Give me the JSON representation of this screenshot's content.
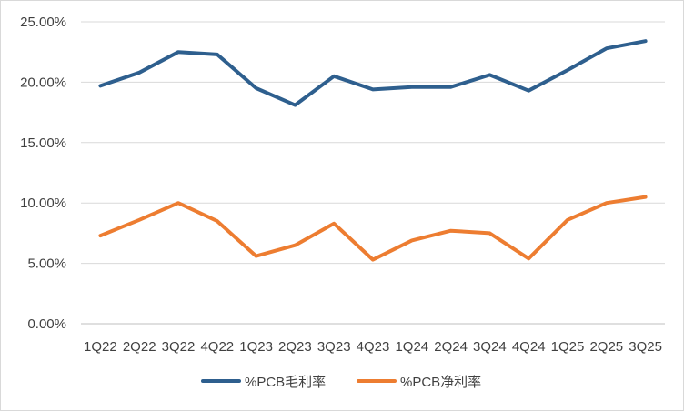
{
  "chart_data": {
    "type": "line",
    "title": "",
    "xlabel": "",
    "ylabel": "",
    "categories": [
      "1Q22",
      "2Q22",
      "3Q22",
      "4Q22",
      "1Q23",
      "2Q23",
      "3Q23",
      "4Q23",
      "1Q24",
      "2Q24",
      "3Q24",
      "4Q24",
      "1Q25",
      "2Q25",
      "3Q25"
    ],
    "y_tick_labels": [
      "0.00%",
      "5.00%",
      "10.00%",
      "15.00%",
      "20.00%",
      "25.00%"
    ],
    "ylim": [
      0,
      25
    ],
    "grid": true,
    "legend_position": "bottom",
    "series": [
      {
        "name": "%PCB毛利率",
        "color": "#2E5F8E",
        "values": [
          19.7,
          20.8,
          22.5,
          22.3,
          19.5,
          18.1,
          20.5,
          19.4,
          19.6,
          19.6,
          20.6,
          19.3,
          21.0,
          22.8,
          23.4
        ]
      },
      {
        "name": "%PCB净利率",
        "color": "#ED7D31",
        "values": [
          7.3,
          8.6,
          10.0,
          8.5,
          5.6,
          6.5,
          8.3,
          5.3,
          6.9,
          7.7,
          7.5,
          5.4,
          8.6,
          10.0,
          10.5
        ]
      }
    ]
  }
}
